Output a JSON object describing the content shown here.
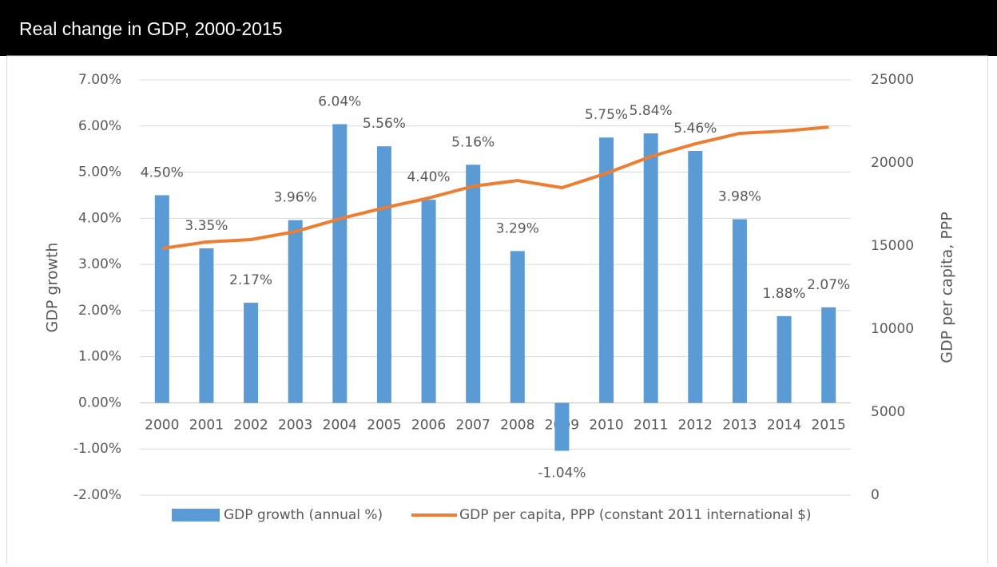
{
  "chart_data": {
    "type": "bar-line",
    "title": "Real change in GDP, 2000-2015",
    "categories": [
      "2000",
      "2001",
      "2002",
      "2003",
      "2004",
      "2005",
      "2006",
      "2007",
      "2008",
      "2009",
      "2010",
      "2011",
      "2012",
      "2013",
      "2014",
      "2015"
    ],
    "series": [
      {
        "name": "GDP growth (annual %)",
        "type": "bar",
        "color": "#5b9bd5",
        "values": [
          4.5,
          3.35,
          2.17,
          3.96,
          6.04,
          5.56,
          4.4,
          5.16,
          3.29,
          -1.04,
          5.75,
          5.84,
          5.46,
          3.98,
          1.88,
          2.07
        ],
        "value_labels": [
          "4.50%",
          "3.35%",
          "2.17%",
          "3.96%",
          "6.04%",
          "5.56%",
          "4.40%",
          "5.16%",
          "3.29%",
          "-1.04%",
          "5.75%",
          "5.84%",
          "5.46%",
          "3.98%",
          "1.88%",
          "2.07%"
        ]
      },
      {
        "name": "GDP per capita, PPP (constant 2011 international $)",
        "type": "line",
        "color": "#ed7d31",
        "axis": "y2",
        "values": [
          14850,
          15240,
          15385,
          15865,
          16635,
          17300,
          17885,
          18600,
          18940,
          18510,
          19375,
          20385,
          21150,
          21780,
          21920,
          22160
        ]
      }
    ],
    "ylabel": "GDP growth",
    "y2label": "GDP per capita, PPP",
    "ylim": [
      -2,
      7
    ],
    "yticks": [
      {
        "value": -2,
        "label": "-2.00%"
      },
      {
        "value": -1,
        "label": "-1.00%"
      },
      {
        "value": 0,
        "label": "0.00%"
      },
      {
        "value": 1,
        "label": "1.00%"
      },
      {
        "value": 2,
        "label": "2.00%"
      },
      {
        "value": 3,
        "label": "3.00%"
      },
      {
        "value": 4,
        "label": "4.00%"
      },
      {
        "value": 5,
        "label": "5.00%"
      },
      {
        "value": 6,
        "label": "6.00%"
      },
      {
        "value": 7,
        "label": "7.00%"
      }
    ],
    "y2lim": [
      0,
      25000
    ],
    "y2ticks": [
      0,
      5000,
      10000,
      15000,
      20000,
      25000
    ],
    "grid": true,
    "legend": "bottom"
  }
}
